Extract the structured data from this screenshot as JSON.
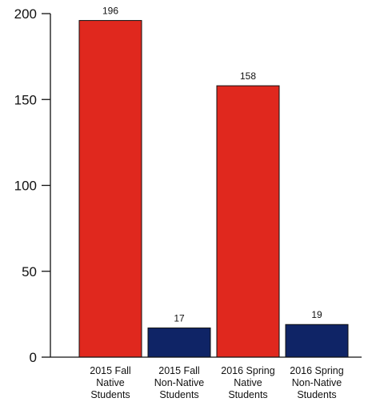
{
  "chart_data": {
    "type": "bar",
    "categories": [
      [
        "2015 Fall",
        "Native",
        "Students"
      ],
      [
        "2015 Fall",
        "Non-Native",
        "Students"
      ],
      [
        "2016 Spring",
        "Native",
        "Students"
      ],
      [
        "2016 Spring",
        "Non-Native",
        "Students"
      ]
    ],
    "values": [
      196,
      17,
      158,
      19
    ],
    "bar_colors": [
      "#e0281e",
      "#0f2466",
      "#e0281e",
      "#0f2466"
    ],
    "ylim": [
      0,
      200
    ],
    "yticks": [
      0,
      50,
      100,
      150,
      200
    ],
    "title": "",
    "xlabel": "",
    "ylabel": "",
    "grid": false,
    "legend": false
  }
}
